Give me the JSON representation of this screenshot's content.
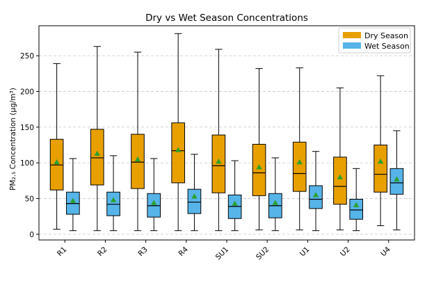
{
  "chart_data": {
    "type": "box",
    "title": "Dry vs Wet Season Concentrations",
    "xlabel": "",
    "ylabel": "PM₂.₅ Concentration (μg/m³)",
    "ylim": [
      -8,
      292
    ],
    "yticks": [
      0,
      50,
      100,
      150,
      200,
      250
    ],
    "grid": "horizontal-dashed",
    "legend_position": "top-right",
    "categories": [
      "R1",
      "R2",
      "R3",
      "R4",
      "SU1",
      "SU2",
      "U1",
      "U2",
      "U4"
    ],
    "series": [
      {
        "name": "Dry Season",
        "color": "#E8A000",
        "stats": [
          {
            "min": 7,
            "q1": 62,
            "median": 97,
            "q3": 133,
            "max": 239,
            "mean": 101
          },
          {
            "min": 5,
            "q1": 69,
            "median": 107,
            "q3": 147,
            "max": 263,
            "mean": 113
          },
          {
            "min": 5,
            "q1": 64,
            "median": 101,
            "q3": 140,
            "max": 255,
            "mean": 105
          },
          {
            "min": 5,
            "q1": 72,
            "median": 117,
            "q3": 156,
            "max": 281,
            "mean": 118
          },
          {
            "min": 5,
            "q1": 58,
            "median": 96,
            "q3": 139,
            "max": 259,
            "mean": 102
          },
          {
            "min": 6,
            "q1": 54,
            "median": 86,
            "q3": 126,
            "max": 232,
            "mean": 94
          },
          {
            "min": 6,
            "q1": 60,
            "median": 85,
            "q3": 129,
            "max": 233,
            "mean": 101
          },
          {
            "min": 6,
            "q1": 42,
            "median": 67,
            "q3": 108,
            "max": 205,
            "mean": 80
          },
          {
            "min": 12,
            "q1": 59,
            "median": 84,
            "q3": 125,
            "max": 222,
            "mean": 102
          }
        ]
      },
      {
        "name": "Wet Season",
        "color": "#56B4E9",
        "stats": [
          {
            "min": 5,
            "q1": 28,
            "median": 43,
            "q3": 59,
            "max": 106,
            "mean": 47
          },
          {
            "min": 5,
            "q1": 26,
            "median": 42,
            "q3": 59,
            "max": 110,
            "mean": 48
          },
          {
            "min": 5,
            "q1": 24,
            "median": 40,
            "q3": 57,
            "max": 106,
            "mean": 44
          },
          {
            "min": 5,
            "q1": 29,
            "median": 45,
            "q3": 63,
            "max": 112,
            "mean": 53
          },
          {
            "min": 5,
            "q1": 22,
            "median": 39,
            "q3": 55,
            "max": 103,
            "mean": 43
          },
          {
            "min": 5,
            "q1": 23,
            "median": 40,
            "q3": 57,
            "max": 107,
            "mean": 44
          },
          {
            "min": 5,
            "q1": 36,
            "median": 49,
            "q3": 68,
            "max": 116,
            "mean": 55
          },
          {
            "min": 5,
            "q1": 21,
            "median": 34,
            "q3": 49,
            "max": 92,
            "mean": 41
          },
          {
            "min": 6,
            "q1": 56,
            "median": 72,
            "q3": 92,
            "max": 145,
            "mean": 77
          }
        ]
      }
    ],
    "mean_marker_color": "#2CA02C"
  }
}
